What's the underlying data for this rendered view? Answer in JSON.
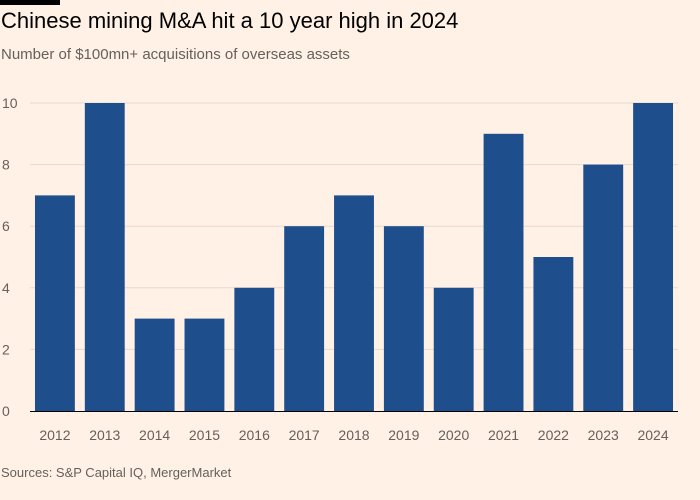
{
  "header": {
    "title": "Chinese mining M&A hit a 10 year high in 2024",
    "subtitle": "Number of $100mn+ acquisitions of overseas assets"
  },
  "footer": {
    "source": "Sources: S&P Capital IQ, MergerMarket"
  },
  "colors": {
    "background": "#fff1e5",
    "bar": "#1f4e8c",
    "grid": "#e6d9ce",
    "baseline": "#000000",
    "text": "#66605c"
  },
  "chart_data": {
    "type": "bar",
    "title": "Chinese mining M&A hit a 10 year high in 2024",
    "subtitle": "Number of $100mn+ acquisitions of overseas assets",
    "categories": [
      "2012",
      "2013",
      "2014",
      "2015",
      "2016",
      "2017",
      "2018",
      "2019",
      "2020",
      "2021",
      "2022",
      "2023",
      "2024"
    ],
    "values": [
      7,
      10,
      3,
      3,
      4,
      6,
      7,
      6,
      4,
      9,
      5,
      8,
      10
    ],
    "ylim": [
      0,
      10
    ],
    "yticks": [
      0,
      2,
      4,
      6,
      8,
      10
    ],
    "ytick_labels": [
      "0",
      "2",
      "4",
      "6",
      "8",
      "10"
    ],
    "grid": true,
    "xlabel": "",
    "ylabel": ""
  }
}
